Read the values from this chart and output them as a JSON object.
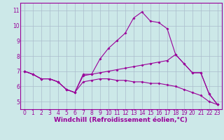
{
  "xlabel": "Windchill (Refroidissement éolien,°C)",
  "x": [
    0,
    1,
    2,
    3,
    4,
    5,
    6,
    7,
    8,
    9,
    10,
    11,
    12,
    13,
    14,
    15,
    16,
    17,
    18,
    19,
    20,
    21,
    22,
    23
  ],
  "line1": [
    7.0,
    6.8,
    6.5,
    6.5,
    6.3,
    5.8,
    5.6,
    6.8,
    6.8,
    7.8,
    8.5,
    9.0,
    9.5,
    10.5,
    10.9,
    10.3,
    10.2,
    9.8,
    8.1,
    7.5,
    6.9,
    6.9,
    5.5,
    4.8
  ],
  "line2": [
    7.0,
    6.8,
    6.5,
    6.5,
    6.3,
    5.8,
    5.6,
    6.7,
    6.8,
    6.9,
    7.0,
    7.1,
    7.2,
    7.3,
    7.4,
    7.5,
    7.6,
    7.7,
    8.1,
    7.5,
    6.9,
    6.9,
    5.5,
    4.8
  ],
  "line3": [
    7.0,
    6.8,
    6.5,
    6.5,
    6.3,
    5.8,
    5.6,
    6.3,
    6.4,
    6.5,
    6.5,
    6.4,
    6.4,
    6.3,
    6.3,
    6.2,
    6.2,
    6.1,
    6.0,
    5.8,
    5.6,
    5.4,
    5.0,
    4.8
  ],
  "color": "#990099",
  "bg_color": "#cce8e8",
  "grid_color": "#aabccc",
  "ylim": [
    4.5,
    11.5
  ],
  "xlim": [
    -0.5,
    23.5
  ],
  "yticks": [
    5,
    6,
    7,
    8,
    9,
    10,
    11
  ],
  "xticks": [
    0,
    1,
    2,
    3,
    4,
    5,
    6,
    7,
    8,
    9,
    10,
    11,
    12,
    13,
    14,
    15,
    16,
    17,
    18,
    19,
    20,
    21,
    22,
    23
  ],
  "tick_fontsize": 5.5,
  "label_fontsize": 6.5
}
